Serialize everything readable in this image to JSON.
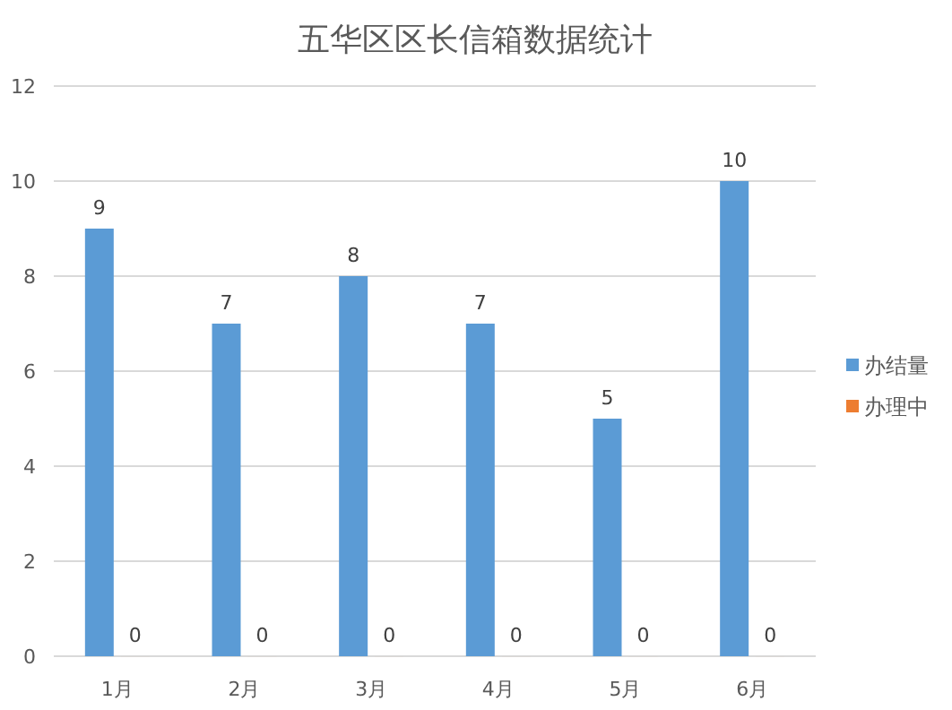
{
  "chart_data": {
    "type": "bar",
    "title": "五华区区长信箱数据统计",
    "categories": [
      "1月",
      "2月",
      "3月",
      "4月",
      "5月",
      "6月"
    ],
    "series": [
      {
        "name": "办结量",
        "color": "#5b9bd5",
        "values": [
          9,
          7,
          8,
          7,
          5,
          10
        ]
      },
      {
        "name": "办理中",
        "color": "#ed7d31",
        "values": [
          0,
          0,
          0,
          0,
          0,
          0
        ]
      }
    ],
    "ylim": [
      0,
      12
    ],
    "yticks": [
      0,
      2,
      4,
      6,
      8,
      10,
      12
    ],
    "grid": "y",
    "legend": "right",
    "data_labels": true
  }
}
